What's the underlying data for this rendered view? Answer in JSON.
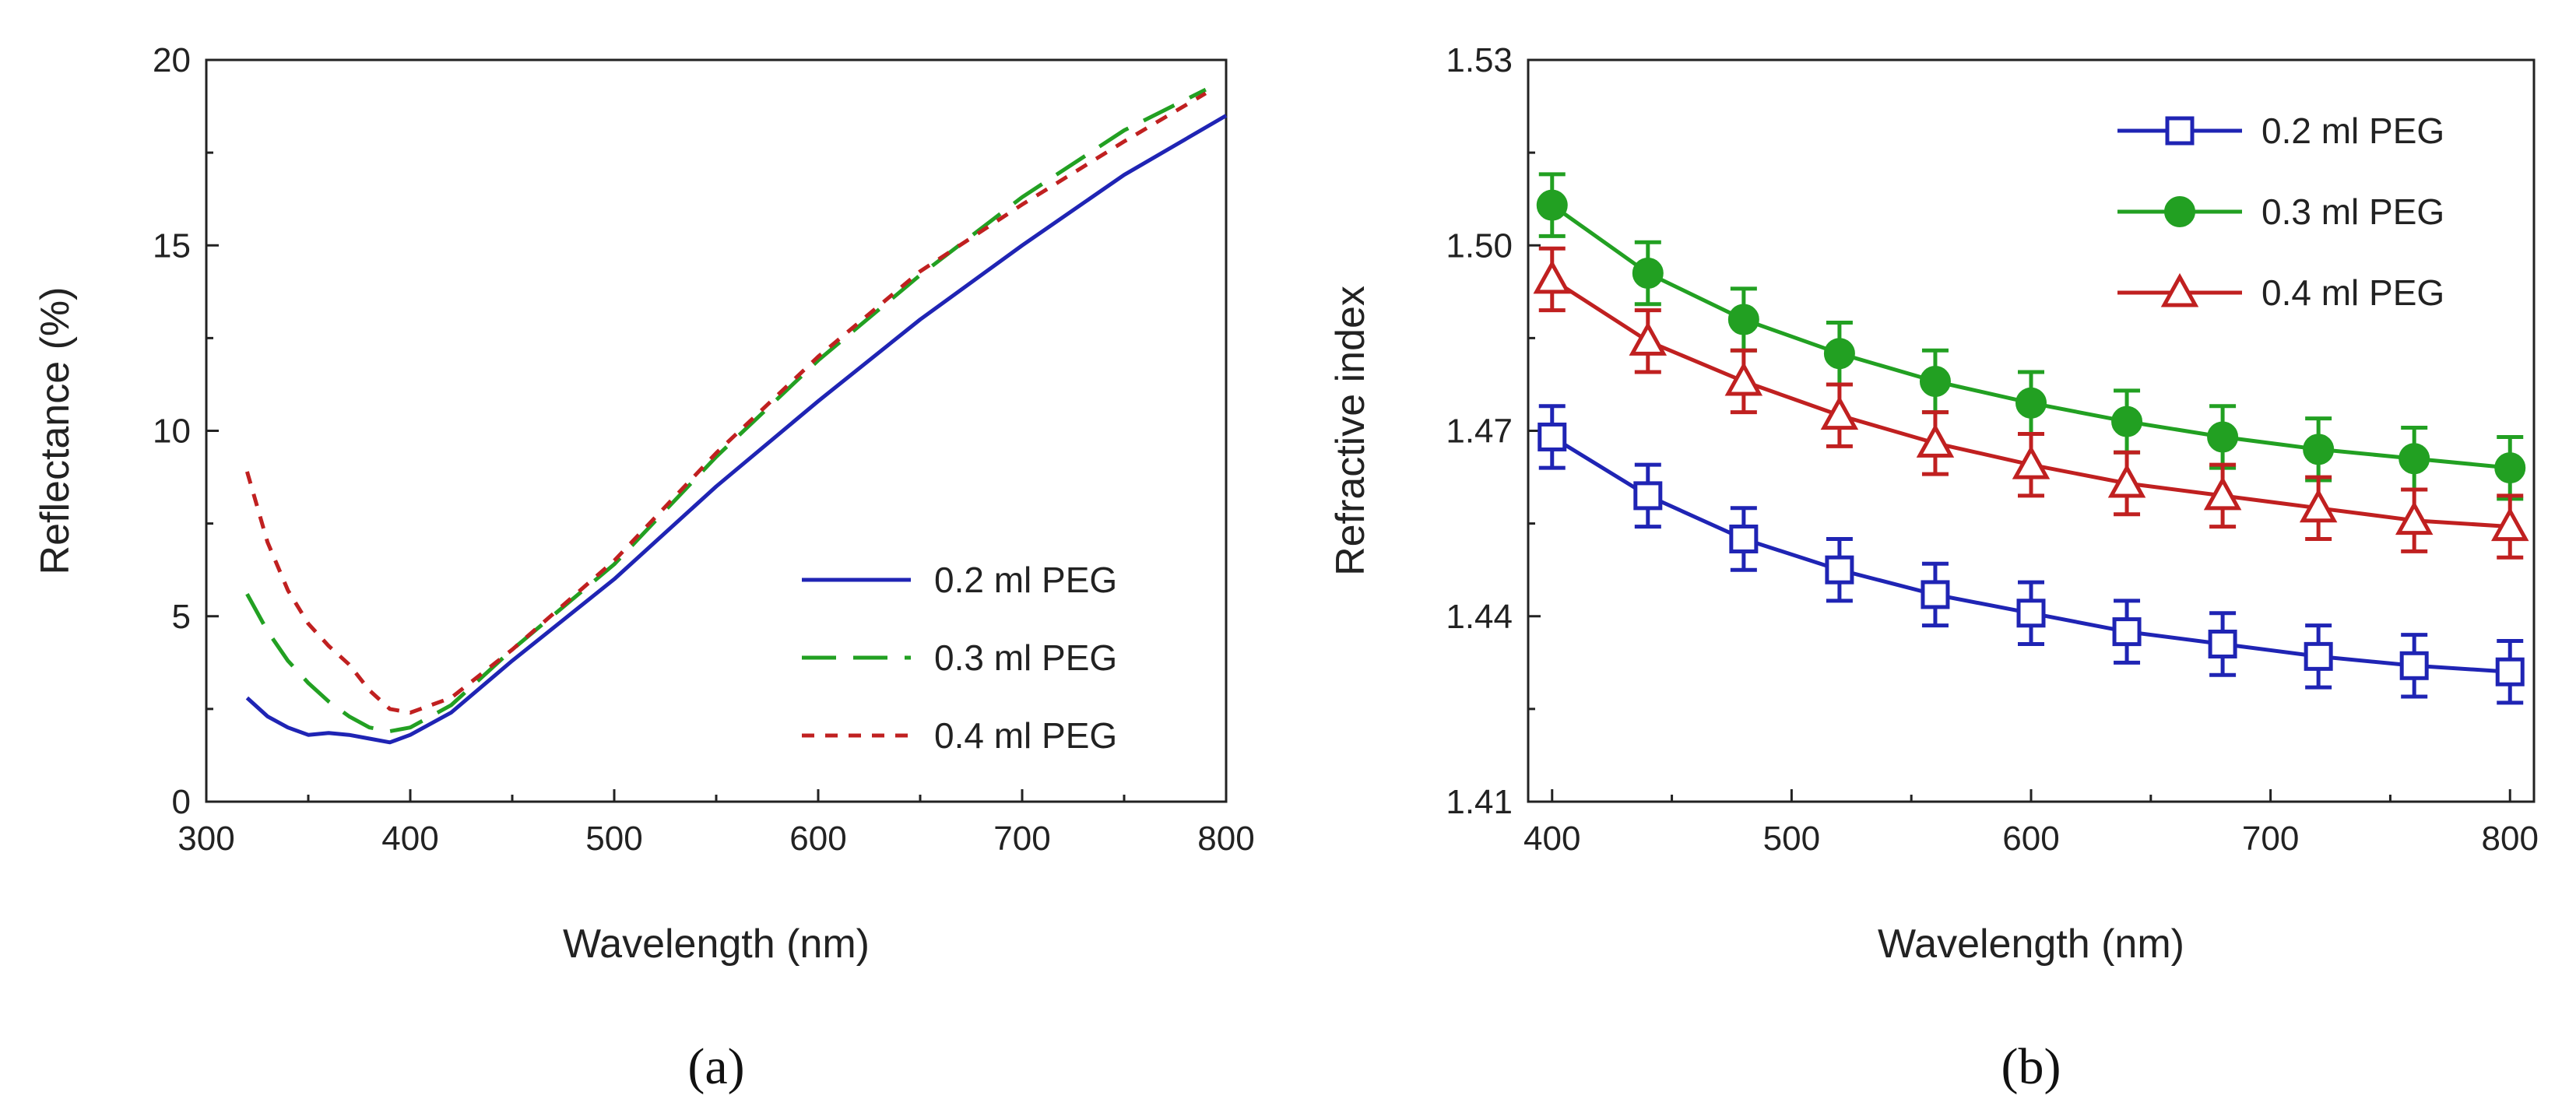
{
  "chart_data": [
    {
      "type": "line",
      "panel_label": "(a)",
      "xlabel": "Wavelength (nm)",
      "ylabel": "Reflectance (%)",
      "xlim": [
        300,
        800
      ],
      "ylim": [
        0,
        20
      ],
      "xticks": [
        300,
        400,
        500,
        600,
        700,
        800
      ],
      "yticks": [
        0,
        5,
        10,
        15,
        20
      ],
      "legend_position": "center-right",
      "series": [
        {
          "name": "0.2 ml PEG",
          "color": "#1f24b4",
          "style": "solid",
          "x": [
            320,
            330,
            340,
            350,
            360,
            370,
            380,
            390,
            400,
            420,
            450,
            500,
            550,
            600,
            650,
            700,
            750,
            800
          ],
          "y": [
            2.8,
            2.3,
            2.0,
            1.8,
            1.85,
            1.8,
            1.7,
            1.6,
            1.8,
            2.4,
            3.8,
            6.0,
            8.5,
            10.8,
            13.0,
            15.0,
            16.9,
            18.5
          ]
        },
        {
          "name": "0.3 ml PEG",
          "color": "#22a022",
          "style": "dashed",
          "x": [
            320,
            330,
            340,
            350,
            360,
            370,
            380,
            390,
            400,
            420,
            450,
            500,
            550,
            600,
            650,
            700,
            750,
            790
          ],
          "y": [
            5.6,
            4.6,
            3.8,
            3.2,
            2.7,
            2.3,
            2.0,
            1.9,
            2.0,
            2.6,
            4.1,
            6.4,
            9.3,
            11.9,
            14.2,
            16.3,
            18.1,
            19.2
          ]
        },
        {
          "name": "0.4 ml PEG",
          "color": "#c02020",
          "style": "dotted",
          "x": [
            320,
            330,
            340,
            350,
            360,
            370,
            380,
            390,
            400,
            420,
            450,
            500,
            550,
            600,
            650,
            700,
            750,
            790
          ],
          "y": [
            8.9,
            7.0,
            5.7,
            4.8,
            4.2,
            3.7,
            3.0,
            2.5,
            2.4,
            2.8,
            4.1,
            6.5,
            9.4,
            12.0,
            14.3,
            16.1,
            17.8,
            19.1
          ]
        }
      ]
    },
    {
      "type": "line",
      "panel_label": "(b)",
      "xlabel": "Wavelength (nm)",
      "ylabel": "Refractive index",
      "xlim": [
        390,
        810
      ],
      "ylim": [
        1.41,
        1.53
      ],
      "xticks": [
        400,
        500,
        600,
        700,
        800
      ],
      "yticks": [
        1.41,
        1.44,
        1.47,
        1.5,
        1.53
      ],
      "ytick_labels": [
        "1.41",
        "1.44",
        "1.47",
        "1.50",
        "1.53"
      ],
      "legend_position": "top-right",
      "error": 0.005,
      "x": [
        400,
        440,
        480,
        520,
        560,
        600,
        640,
        680,
        720,
        760,
        800
      ],
      "series": [
        {
          "name": "0.2 ml PEG",
          "color": "#1f24b4",
          "marker": "open-square",
          "values": [
            1.469,
            1.4595,
            1.4525,
            1.4475,
            1.4435,
            1.4405,
            1.4375,
            1.4355,
            1.4335,
            1.432,
            1.431
          ]
        },
        {
          "name": "0.3 ml PEG",
          "color": "#22a022",
          "marker": "filled-circle",
          "values": [
            1.5065,
            1.4955,
            1.488,
            1.4825,
            1.478,
            1.4745,
            1.4715,
            1.469,
            1.467,
            1.4655,
            1.464
          ]
        },
        {
          "name": "0.4 ml PEG",
          "color": "#c02020",
          "marker": "open-triangle",
          "values": [
            1.4945,
            1.4845,
            1.478,
            1.4725,
            1.468,
            1.4645,
            1.4615,
            1.4595,
            1.4575,
            1.4555,
            1.4545
          ]
        }
      ]
    }
  ]
}
